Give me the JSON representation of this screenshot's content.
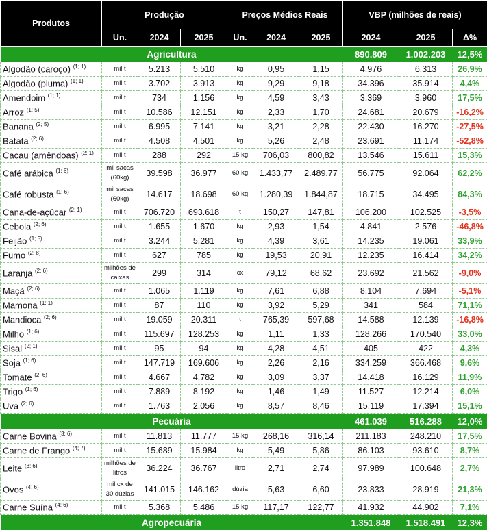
{
  "header": {
    "produtos": "Produtos",
    "producao": "Produção",
    "precos": "Preços Médios Reais",
    "vbp": "VBP (milhões de reais)",
    "sub": [
      "Un.",
      "2024",
      "2025",
      "Un.",
      "2024",
      "2025",
      "2024",
      "2025",
      "Δ%"
    ]
  },
  "colors": {
    "section_green": "#1f9e1f",
    "positive": "#2ea02e",
    "negative": "#e0321c"
  },
  "sections": [
    {
      "title": "Agricultura",
      "vbp2024": "890.809",
      "vbp2025": "1.002.203",
      "pct": "12,5%",
      "rows": [
        {
          "name": "Algodão (caroço)",
          "note": "(1; 1)",
          "un": "mil t",
          "p24": "5.213",
          "p25": "5.510",
          "pun": "kg",
          "pr24": "0,95",
          "pr25": "1,15",
          "v24": "4.976",
          "v25": "6.313",
          "pct": "26,9%"
        },
        {
          "name": "Algodão (pluma)",
          "note": "(1; 1)",
          "un": "mil t",
          "p24": "3.702",
          "p25": "3.913",
          "pun": "kg",
          "pr24": "9,29",
          "pr25": "9,18",
          "v24": "34.396",
          "v25": "35.914",
          "pct": "4,4%"
        },
        {
          "name": "Amendoim",
          "note": "(1; 1)",
          "un": "mil t",
          "p24": "734",
          "p25": "1.156",
          "pun": "kg",
          "pr24": "4,59",
          "pr25": "3,43",
          "v24": "3.369",
          "v25": "3.960",
          "pct": "17,5%"
        },
        {
          "name": "Arroz",
          "note": "(1; 5)",
          "un": "mil t",
          "p24": "10.586",
          "p25": "12.151",
          "pun": "kg",
          "pr24": "2,33",
          "pr25": "1,70",
          "v24": "24.681",
          "v25": "20.679",
          "pct": "-16,2%"
        },
        {
          "name": "Banana",
          "note": "(2; 5)",
          "un": "mil t",
          "p24": "6.995",
          "p25": "7.141",
          "pun": "kg",
          "pr24": "3,21",
          "pr25": "2,28",
          "v24": "22.430",
          "v25": "16.270",
          "pct": "-27,5%"
        },
        {
          "name": "Batata",
          "note": "(2; 6)",
          "un": "mil t",
          "p24": "4.508",
          "p25": "4.501",
          "pun": "kg",
          "pr24": "5,26",
          "pr25": "2,48",
          "v24": "23.691",
          "v25": "11.174",
          "pct": "-52,8%"
        },
        {
          "name": "Cacau (amêndoas)",
          "note": "(2; 1)",
          "un": "mil t",
          "p24": "288",
          "p25": "292",
          "pun": "15 kg",
          "pr24": "706,03",
          "pr25": "800,82",
          "v24": "13.546",
          "v25": "15.611",
          "pct": "15,3%"
        },
        {
          "name": "Café arábica",
          "note": "(1; 6)",
          "un": "mil sacas (60kg)",
          "p24": "39.598",
          "p25": "36.977",
          "pun": "60 kg",
          "pr24": "1.433,77",
          "pr25": "2.489,77",
          "v24": "56.775",
          "v25": "92.064",
          "pct": "62,2%"
        },
        {
          "name": "Café robusta",
          "note": "(1; 6)",
          "un": "mil sacas (60kg)",
          "p24": "14.617",
          "p25": "18.698",
          "pun": "60 kg",
          "pr24": "1.280,39",
          "pr25": "1.844,87",
          "v24": "18.715",
          "v25": "34.495",
          "pct": "84,3%"
        },
        {
          "name": "Cana-de-açúcar",
          "note": "(2; 1)",
          "un": "mil t",
          "p24": "706.720",
          "p25": "693.618",
          "pun": "t",
          "pr24": "150,27",
          "pr25": "147,81",
          "v24": "106.200",
          "v25": "102.525",
          "pct": "-3,5%"
        },
        {
          "name": "Cebola",
          "note": "(2; 6)",
          "un": "mil t",
          "p24": "1.655",
          "p25": "1.670",
          "pun": "kg",
          "pr24": "2,93",
          "pr25": "1,54",
          "v24": "4.841",
          "v25": "2.576",
          "pct": "-46,8%"
        },
        {
          "name": "Feijão",
          "note": "(1; 5)",
          "un": "mil t",
          "p24": "3.244",
          "p25": "5.281",
          "pun": "kg",
          "pr24": "4,39",
          "pr25": "3,61",
          "v24": "14.235",
          "v25": "19.061",
          "pct": "33,9%"
        },
        {
          "name": "Fumo",
          "note": "(2; 8)",
          "un": "mil t",
          "p24": "627",
          "p25": "785",
          "pun": "kg",
          "pr24": "19,53",
          "pr25": "20,91",
          "v24": "12.235",
          "v25": "16.414",
          "pct": "34,2%"
        },
        {
          "name": "Laranja",
          "note": "(2; 6)",
          "un": "milhões de caixas",
          "p24": "299",
          "p25": "314",
          "pun": "cx",
          "pr24": "79,12",
          "pr25": "68,62",
          "v24": "23.692",
          "v25": "21.562",
          "pct": "-9,0%"
        },
        {
          "name": "Maçã",
          "note": "(2; 6)",
          "un": "mil t",
          "p24": "1.065",
          "p25": "1.119",
          "pun": "kg",
          "pr24": "7,61",
          "pr25": "6,88",
          "v24": "8.104",
          "v25": "7.694",
          "pct": "-5,1%"
        },
        {
          "name": "Mamona",
          "note": "(1; 1)",
          "un": "mil t",
          "p24": "87",
          "p25": "110",
          "pun": "kg",
          "pr24": "3,92",
          "pr25": "5,29",
          "v24": "341",
          "v25": "584",
          "pct": "71,1%"
        },
        {
          "name": "Mandioca",
          "note": "(2; 6)",
          "un": "mil t",
          "p24": "19.059",
          "p25": "20.311",
          "pun": "t",
          "pr24": "765,39",
          "pr25": "597,68",
          "v24": "14.588",
          "v25": "12.139",
          "pct": "-16,8%"
        },
        {
          "name": "Milho",
          "note": "(1; 6)",
          "un": "mil t",
          "p24": "115.697",
          "p25": "128.253",
          "pun": "kg",
          "pr24": "1,11",
          "pr25": "1,33",
          "v24": "128.266",
          "v25": "170.540",
          "pct": "33,0%"
        },
        {
          "name": "Sisal",
          "note": "(2; 1)",
          "un": "mil t",
          "p24": "95",
          "p25": "94",
          "pun": "kg",
          "pr24": "4,28",
          "pr25": "4,51",
          "v24": "405",
          "v25": "422",
          "pct": "4,3%"
        },
        {
          "name": "Soja",
          "note": "(1; 6)",
          "un": "mil t",
          "p24": "147.719",
          "p25": "169.606",
          "pun": "kg",
          "pr24": "2,26",
          "pr25": "2,16",
          "v24": "334.259",
          "v25": "366.468",
          "pct": "9,6%"
        },
        {
          "name": "Tomate",
          "note": "(2; 6)",
          "un": "mil t",
          "p24": "4.667",
          "p25": "4.782",
          "pun": "kg",
          "pr24": "3,09",
          "pr25": "3,37",
          "v24": "14.418",
          "v25": "16.129",
          "pct": "11,9%"
        },
        {
          "name": "Trigo",
          "note": "(1; 6)",
          "un": "mil t",
          "p24": "7.889",
          "p25": "8.192",
          "pun": "kg",
          "pr24": "1,46",
          "pr25": "1,49",
          "v24": "11.527",
          "v25": "12.214",
          "pct": "6,0%"
        },
        {
          "name": "Uva",
          "note": "(2; 6)",
          "un": "mil t",
          "p24": "1.763",
          "p25": "2.056",
          "pun": "kg",
          "pr24": "8,57",
          "pr25": "8,46",
          "v24": "15.119",
          "v25": "17.394",
          "pct": "15,1%"
        }
      ]
    },
    {
      "title": "Pecuária",
      "vbp2024": "461.039",
      "vbp2025": "516.288",
      "pct": "12,0%",
      "rows": [
        {
          "name": "Carne Bovina",
          "note": "(3; 6)",
          "un": "mil t",
          "p24": "11.813",
          "p25": "11.777",
          "pun": "15 kg",
          "pr24": "268,16",
          "pr25": "316,14",
          "v24": "211.183",
          "v25": "248.210",
          "pct": "17,5%"
        },
        {
          "name": "Carne de Frango",
          "note": "(4; 7)",
          "un": "mil t",
          "p24": "15.689",
          "p25": "15.984",
          "pun": "kg",
          "pr24": "5,49",
          "pr25": "5,86",
          "v24": "86.103",
          "v25": "93.610",
          "pct": "8,7%"
        },
        {
          "name": "Leite",
          "note": "(3; 6)",
          "un": "milhões de litros",
          "p24": "36.224",
          "p25": "36.767",
          "pun": "litro",
          "pr24": "2,71",
          "pr25": "2,74",
          "v24": "97.989",
          "v25": "100.648",
          "pct": "2,7%"
        },
        {
          "name": "Ovos",
          "note": "(4; 6)",
          "un": "mil cx de 30 dúzias",
          "p24": "141.015",
          "p25": "146.162",
          "pun": "dúzia",
          "pr24": "5,63",
          "pr25": "6,60",
          "v24": "23.833",
          "v25": "28.919",
          "pct": "21,3%"
        },
        {
          "name": "Carne Suína",
          "note": "(4; 6)",
          "un": "mil t",
          "p24": "5.368",
          "p25": "5.486",
          "pun": "15 kg",
          "pr24": "117,17",
          "pr25": "122,77",
          "v24": "41.932",
          "v25": "44.902",
          "pct": "7,1%"
        }
      ]
    }
  ],
  "total": {
    "title": "Agropecuária",
    "vbp2024": "1.351.848",
    "vbp2025": "1.518.491",
    "pct": "12,3%"
  }
}
